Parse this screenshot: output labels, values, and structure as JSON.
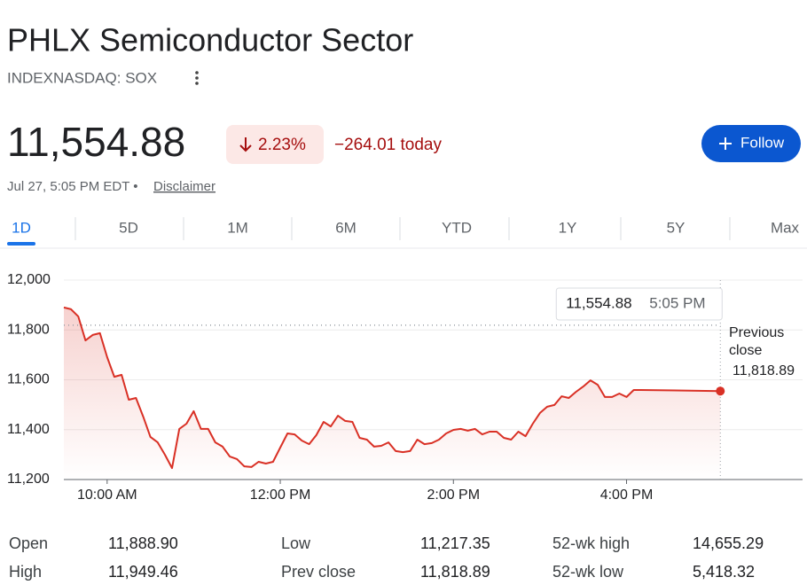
{
  "header": {
    "title": "PHLX Semiconductor Sector",
    "ticker": "INDEXNASDAQ: SOX"
  },
  "quote": {
    "price": "11,554.88",
    "change_pct": "2.23%",
    "change": "−264.01 today",
    "timestamp": "Jul 27, 5:05 PM EDT •",
    "disclaimer": "Disclaimer",
    "follow": "Follow"
  },
  "tabs": [
    "1D",
    "5D",
    "1M",
    "6M",
    "YTD",
    "1Y",
    "5Y",
    "Max"
  ],
  "chart_data": {
    "type": "line",
    "x": [
      0,
      5,
      10,
      15,
      20,
      25,
      30,
      35,
      40,
      45,
      50,
      55,
      60,
      65,
      70,
      75,
      80,
      85,
      90,
      95,
      100,
      105,
      110,
      115,
      120,
      125,
      130,
      135,
      140,
      145,
      150,
      155,
      160,
      165,
      170,
      175,
      180,
      185,
      190,
      195,
      200,
      205,
      210,
      215,
      220,
      225,
      230,
      235,
      240,
      245,
      250,
      255,
      260,
      265,
      270,
      275,
      280,
      285,
      290,
      295,
      300,
      305,
      310,
      315,
      320,
      325,
      330,
      335,
      340,
      345,
      350,
      355,
      360,
      365,
      370,
      375,
      380,
      385,
      390,
      395,
      400,
      455
    ],
    "series": [
      {
        "color": "#d93025",
        "values": [
          11890,
          11883,
          11854,
          11758,
          11780,
          11787,
          11691,
          11612,
          11620,
          11520,
          11527,
          11452,
          11371,
          11349,
          11300,
          11246,
          11403,
          11424,
          11474,
          11403,
          11403,
          11349,
          11332,
          11292,
          11282,
          11253,
          11250,
          11271,
          11264,
          11271,
          11328,
          11385,
          11381,
          11356,
          11342,
          11378,
          11431,
          11413,
          11456,
          11435,
          11431,
          11367,
          11360,
          11332,
          11335,
          11349,
          11314,
          11310,
          11314,
          11360,
          11342,
          11346,
          11360,
          11385,
          11399,
          11403,
          11396,
          11403,
          11381,
          11392,
          11392,
          11367,
          11360,
          11392,
          11374,
          11424,
          11467,
          11492,
          11499,
          11534,
          11527,
          11552,
          11573,
          11598,
          11580,
          11531,
          11531,
          11545,
          11531,
          11559,
          11559,
          11554.88
        ]
      }
    ],
    "xlim": [
      0,
      512
    ],
    "xticks": [
      {
        "value": 30,
        "label": "10:00 AM"
      },
      {
        "value": 150,
        "label": "12:00 PM"
      },
      {
        "value": 270,
        "label": "2:00 PM"
      },
      {
        "value": 390,
        "label": "4:00 PM"
      }
    ],
    "ylim": [
      11200,
      12000
    ],
    "yticks": [
      {
        "value": 11200,
        "label": "11,200"
      },
      {
        "value": 11400,
        "label": "11,400"
      },
      {
        "value": 11600,
        "label": "11,600"
      },
      {
        "value": 11800,
        "label": "11,800"
      },
      {
        "value": 12000,
        "label": "12,000"
      }
    ],
    "grid": true,
    "previous_close": {
      "label": "Previous close",
      "value": 11818.89,
      "value_label": "11,818.89"
    },
    "tooltip": {
      "value_label": "11,554.88",
      "time": "5:05 PM"
    }
  },
  "stats": {
    "rows": [
      [
        "Open",
        "11,888.90",
        "Low",
        "11,217.35",
        "52-wk high",
        "14,655.29"
      ],
      [
        "High",
        "11,949.46",
        "Prev close",
        "11,818.89",
        "52-wk low",
        "5,418.32"
      ]
    ]
  }
}
